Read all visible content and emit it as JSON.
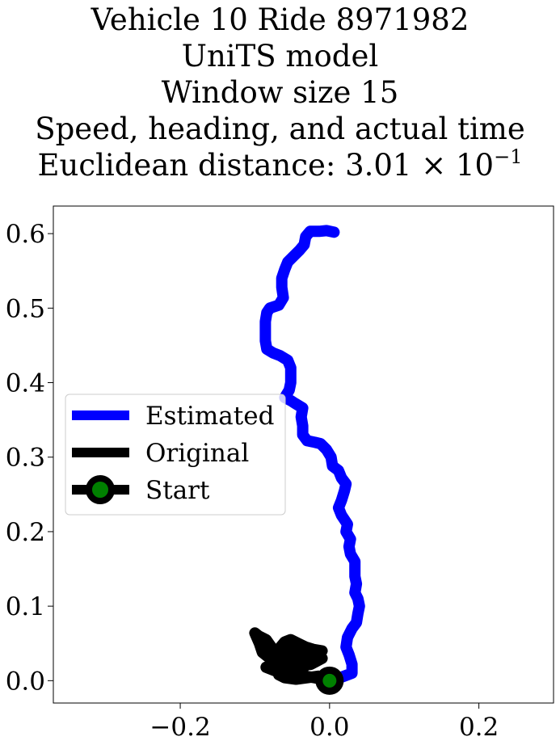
{
  "chart_data": {
    "type": "line",
    "title_lines": [
      "Vehicle 10 Ride 8971982",
      "UniTS model",
      "Window size 15",
      "Speed, heading, and actual time"
    ],
    "title_metric_prefix": "Euclidean distance: 3.01 × 10",
    "title_metric_exponent": "−1",
    "xlim": [
      -0.37,
      0.3
    ],
    "ylim": [
      -0.03,
      0.637
    ],
    "xticks": [
      -0.2,
      0.0,
      0.2
    ],
    "xtick_labels": [
      "−0.2",
      "0.0",
      "0.2"
    ],
    "yticks": [
      0.0,
      0.1,
      0.2,
      0.3,
      0.4,
      0.5,
      0.6
    ],
    "ytick_labels": [
      "0.0",
      "0.1",
      "0.2",
      "0.3",
      "0.4",
      "0.5",
      "0.6"
    ],
    "grid": false,
    "legend_position": "center-left",
    "legend": [
      "Estimated",
      "Original",
      "Start"
    ],
    "colors": {
      "estimated": "#0000ff",
      "original": "#000000",
      "start_marker": "#008000"
    },
    "series": [
      {
        "name": "Estimated",
        "points": [
          [
            0.0,
            0.0
          ],
          [
            0.014,
            0.004
          ],
          [
            0.03,
            0.01
          ],
          [
            0.03,
            0.022
          ],
          [
            0.026,
            0.035
          ],
          [
            0.022,
            0.045
          ],
          [
            0.024,
            0.058
          ],
          [
            0.03,
            0.07
          ],
          [
            0.036,
            0.078
          ],
          [
            0.038,
            0.09
          ],
          [
            0.04,
            0.1
          ],
          [
            0.038,
            0.11
          ],
          [
            0.034,
            0.118
          ],
          [
            0.036,
            0.13
          ],
          [
            0.034,
            0.14
          ],
          [
            0.034,
            0.148
          ],
          [
            0.034,
            0.16
          ],
          [
            0.028,
            0.17
          ],
          [
            0.026,
            0.18
          ],
          [
            0.028,
            0.19
          ],
          [
            0.022,
            0.2
          ],
          [
            0.024,
            0.21
          ],
          [
            0.016,
            0.222
          ],
          [
            0.012,
            0.232
          ],
          [
            0.016,
            0.242
          ],
          [
            0.02,
            0.255
          ],
          [
            0.022,
            0.264
          ],
          [
            0.016,
            0.272
          ],
          [
            0.012,
            0.282
          ],
          [
            0.004,
            0.288
          ],
          [
            0.002,
            0.3
          ],
          [
            -0.004,
            0.31
          ],
          [
            -0.012,
            0.318
          ],
          [
            -0.02,
            0.32
          ],
          [
            -0.03,
            0.322
          ],
          [
            -0.036,
            0.33
          ],
          [
            -0.036,
            0.342
          ],
          [
            -0.038,
            0.354
          ],
          [
            -0.036,
            0.366
          ],
          [
            -0.046,
            0.372
          ],
          [
            -0.052,
            0.376
          ],
          [
            -0.06,
            0.38
          ],
          [
            -0.054,
            0.39
          ],
          [
            -0.052,
            0.4
          ],
          [
            -0.052,
            0.41
          ],
          [
            -0.052,
            0.42
          ],
          [
            -0.056,
            0.43
          ],
          [
            -0.066,
            0.436
          ],
          [
            -0.076,
            0.44
          ],
          [
            -0.084,
            0.445
          ],
          [
            -0.086,
            0.456
          ],
          [
            -0.086,
            0.47
          ],
          [
            -0.086,
            0.482
          ],
          [
            -0.084,
            0.494
          ],
          [
            -0.08,
            0.5
          ],
          [
            -0.068,
            0.504
          ],
          [
            -0.062,
            0.514
          ],
          [
            -0.064,
            0.528
          ],
          [
            -0.064,
            0.54
          ],
          [
            -0.06,
            0.552
          ],
          [
            -0.056,
            0.562
          ],
          [
            -0.048,
            0.57
          ],
          [
            -0.04,
            0.578
          ],
          [
            -0.034,
            0.585
          ],
          [
            -0.032,
            0.596
          ],
          [
            -0.026,
            0.603
          ],
          [
            -0.014,
            0.603
          ],
          [
            -0.004,
            0.604
          ],
          [
            0.006,
            0.602
          ]
        ]
      },
      {
        "name": "Original",
        "points": [
          [
            0.0,
            0.0
          ],
          [
            -0.02,
            0.004
          ],
          [
            -0.045,
            0.008
          ],
          [
            -0.07,
            0.012
          ],
          [
            -0.085,
            0.018
          ],
          [
            -0.07,
            0.022
          ],
          [
            -0.045,
            0.02
          ],
          [
            -0.025,
            0.022
          ],
          [
            -0.01,
            0.03
          ],
          [
            -0.015,
            0.038
          ],
          [
            -0.03,
            0.04
          ],
          [
            -0.045,
            0.035
          ],
          [
            -0.055,
            0.038
          ],
          [
            -0.048,
            0.05
          ],
          [
            -0.038,
            0.045
          ],
          [
            -0.035,
            0.032
          ],
          [
            -0.045,
            0.025
          ],
          [
            -0.06,
            0.022
          ],
          [
            -0.07,
            0.03
          ],
          [
            -0.078,
            0.045
          ],
          [
            -0.085,
            0.055
          ],
          [
            -0.095,
            0.06
          ],
          [
            -0.1,
            0.064
          ],
          [
            -0.094,
            0.05
          ],
          [
            -0.09,
            0.038
          ],
          [
            -0.08,
            0.03
          ],
          [
            -0.07,
            0.04
          ],
          [
            -0.06,
            0.052
          ],
          [
            -0.052,
            0.055
          ],
          [
            -0.042,
            0.05
          ],
          [
            -0.032,
            0.045
          ],
          [
            -0.022,
            0.042
          ],
          [
            -0.01,
            0.04
          ],
          [
            -0.018,
            0.032
          ],
          [
            -0.025,
            0.025
          ],
          [
            -0.035,
            0.018
          ],
          [
            -0.05,
            0.014
          ],
          [
            -0.062,
            0.016
          ],
          [
            -0.075,
            0.018
          ],
          [
            -0.068,
            0.028
          ],
          [
            -0.058,
            0.035
          ],
          [
            -0.05,
            0.03
          ],
          [
            -0.042,
            0.02
          ],
          [
            -0.055,
            0.012
          ],
          [
            -0.068,
            0.008
          ],
          [
            -0.06,
            0.004
          ],
          [
            -0.045,
            0.002
          ],
          [
            -0.03,
            0.004
          ],
          [
            -0.015,
            0.006
          ],
          [
            -0.006,
            0.004
          ]
        ]
      }
    ],
    "start_point": [
      0.0,
      0.0
    ]
  }
}
